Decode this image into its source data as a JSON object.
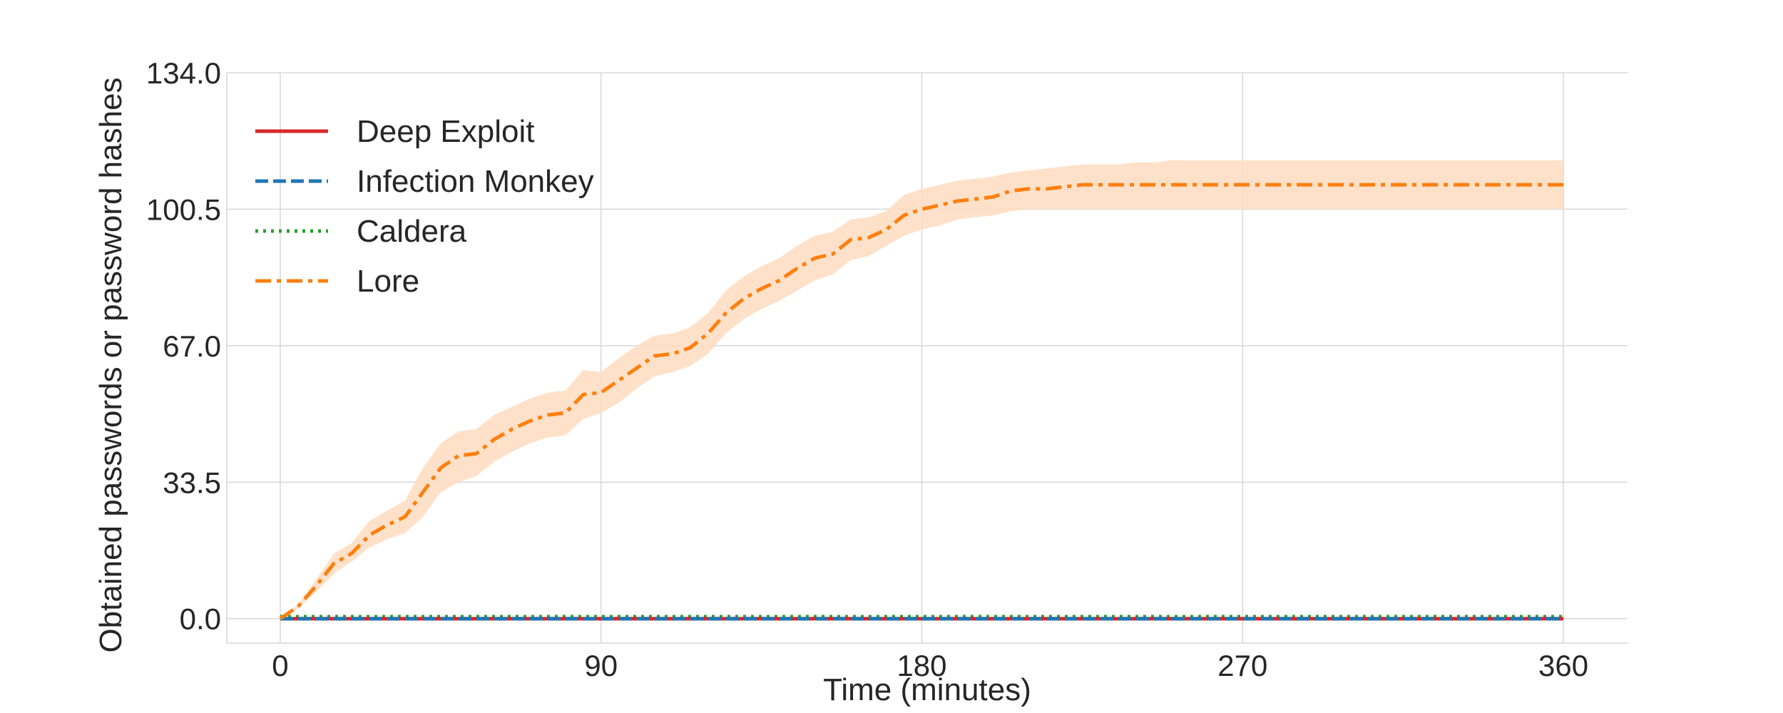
{
  "chart_data": {
    "type": "line",
    "title": "",
    "xlabel": "Time (minutes)",
    "ylabel": "Obtained passwords or password hashes",
    "xlim": [
      -15,
      378
    ],
    "ylim": [
      -6,
      134
    ],
    "xticks": [
      0,
      90,
      180,
      270,
      360
    ],
    "xtick_labels": [
      "0",
      "90",
      "180",
      "270",
      "360"
    ],
    "yticks": [
      0,
      33.5,
      67,
      100.5,
      134
    ],
    "ytick_labels": [
      "0.0",
      "33.5",
      "67.0",
      "100.5",
      "134.0"
    ],
    "grid": true,
    "legend_position": "top-left",
    "series": [
      {
        "name": "Deep Exploit",
        "color": "#d62728",
        "style": "solid",
        "x": [
          0,
          360
        ],
        "y": [
          0,
          0
        ]
      },
      {
        "name": "Infection Monkey",
        "color": "#1f77b4",
        "style": "dashed",
        "x": [
          0,
          360
        ],
        "y": [
          0,
          0
        ]
      },
      {
        "name": "Caldera",
        "color": "#2ca02c",
        "style": "dotted",
        "x": [
          0,
          360
        ],
        "y": [
          0.5,
          0.5
        ]
      },
      {
        "name": "Lore",
        "color": "#ff7f0e",
        "style": "dashdot",
        "band_color": "#ffdcbf",
        "x": [
          0,
          5,
          10,
          15,
          20,
          25,
          30,
          35,
          40,
          45,
          50,
          55,
          60,
          65,
          70,
          75,
          80,
          85,
          90,
          95,
          100,
          105,
          110,
          115,
          120,
          125,
          130,
          135,
          140,
          145,
          150,
          155,
          160,
          165,
          170,
          175,
          180,
          185,
          190,
          195,
          200,
          205,
          210,
          215,
          220,
          225,
          230,
          235,
          240,
          245,
          250,
          260,
          270,
          280,
          290,
          300,
          310,
          320,
          330,
          340,
          350,
          360
        ],
        "y": [
          0,
          3,
          8,
          13.5,
          16,
          20.5,
          23,
          25,
          31,
          37,
          40,
          40.5,
          44,
          46.5,
          48.5,
          50,
          50.5,
          55,
          55.5,
          58.5,
          61.5,
          64.5,
          65,
          66.5,
          70,
          75,
          78.5,
          81,
          83,
          86,
          88.5,
          89.5,
          93,
          93.5,
          95.5,
          99,
          100.5,
          101.5,
          102.5,
          103,
          103.5,
          105,
          105.5,
          105.5,
          106,
          106.5,
          106.5,
          106.5,
          106.5,
          106.5,
          106.5,
          106.5,
          106.5,
          106.5,
          106.5,
          106.5,
          106.5,
          106.5,
          106.5,
          106.5,
          106.5,
          106.5
        ],
        "lower": [
          0,
          2.5,
          6.5,
          11,
          14,
          17.5,
          19.5,
          21,
          25,
          31,
          33.5,
          35,
          38.5,
          41,
          43,
          44.5,
          45,
          49,
          50.5,
          53,
          56.5,
          59.5,
          60.5,
          62,
          65,
          70,
          73.5,
          76,
          78,
          80.5,
          83,
          84.5,
          88,
          89,
          91.5,
          94,
          95.5,
          96.5,
          98,
          98.5,
          99,
          100,
          100.5,
          100.5,
          100.5,
          100.5,
          100.5,
          100.5,
          100.5,
          100.5,
          100.5,
          100.5,
          100.5,
          100.5,
          100.5,
          100.5,
          100.5,
          100.5,
          100.5,
          100.5,
          100.5,
          100.5
        ],
        "upper": [
          0,
          3.5,
          9.5,
          16,
          18.5,
          24,
          26.5,
          29,
          37,
          43,
          46,
          46.5,
          50,
          52,
          54,
          55.5,
          56,
          61,
          60.5,
          64,
          67,
          69.5,
          70,
          71.5,
          75,
          80.5,
          84,
          86.5,
          88.5,
          91.5,
          94,
          95,
          98,
          98.5,
          100,
          104,
          105.5,
          106.5,
          107.5,
          108,
          108.5,
          109.5,
          110,
          110.5,
          111,
          111.5,
          111.5,
          111.5,
          112,
          112,
          112.5,
          112.5,
          112.5,
          112.5,
          112.5,
          112.5,
          112.5,
          112.5,
          112.5,
          112.5,
          112.5,
          112.5
        ]
      }
    ]
  }
}
